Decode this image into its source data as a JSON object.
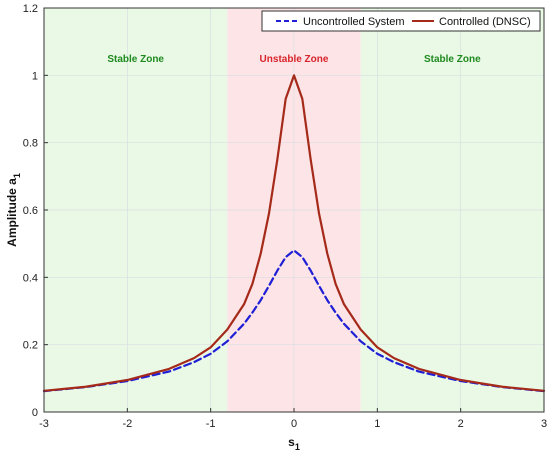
{
  "chart_data": {
    "type": "line",
    "title": "",
    "xlabel": "s",
    "xlabel_sub": "1",
    "ylabel": "Amplitude a",
    "ylabel_sub": "1",
    "xlim": [
      -3,
      3
    ],
    "ylim": [
      0,
      1.2
    ],
    "xticks": [
      -3,
      -2,
      -1,
      0,
      1,
      2,
      3
    ],
    "yticks": [
      0,
      0.2,
      0.4,
      0.6,
      0.8,
      1,
      1.2
    ],
    "grid": true,
    "legend_position": "top-right",
    "zones": [
      {
        "label": "Stable Zone",
        "x_range": [
          -3,
          -0.8
        ],
        "fill": "#eaf9e6",
        "text_color": "#1e8a1e"
      },
      {
        "label": "Unstable Zone",
        "x_range": [
          -0.8,
          0.8
        ],
        "fill": "#fde4e6",
        "text_color": "#d8232a"
      },
      {
        "label": "Stable Zone",
        "x_range": [
          0.8,
          3
        ],
        "fill": "#eaf9e6",
        "text_color": "#1e8a1e"
      }
    ],
    "series": [
      {
        "name": "Uncontrolled System",
        "color": "#1f1fd6",
        "style": "dashed",
        "x": [
          -3,
          -2.5,
          -2,
          -1.5,
          -1.2,
          -1,
          -0.8,
          -0.6,
          -0.5,
          -0.4,
          -0.3,
          -0.2,
          -0.1,
          0,
          0.1,
          0.2,
          0.3,
          0.4,
          0.5,
          0.6,
          0.8,
          1,
          1.2,
          1.5,
          2,
          2.5,
          3
        ],
        "y": [
          0.062,
          0.074,
          0.092,
          0.12,
          0.148,
          0.173,
          0.21,
          0.262,
          0.295,
          0.332,
          0.375,
          0.42,
          0.46,
          0.48,
          0.46,
          0.42,
          0.375,
          0.332,
          0.295,
          0.262,
          0.21,
          0.173,
          0.148,
          0.12,
          0.092,
          0.074,
          0.062
        ]
      },
      {
        "name": "Controlled (DNSC)",
        "color": "#a52a1a",
        "style": "solid",
        "x": [
          -3,
          -2.5,
          -2,
          -1.5,
          -1.2,
          -1,
          -0.8,
          -0.6,
          -0.5,
          -0.4,
          -0.3,
          -0.2,
          -0.1,
          0,
          0.1,
          0.2,
          0.3,
          0.4,
          0.5,
          0.6,
          0.8,
          1,
          1.2,
          1.5,
          2,
          2.5,
          3
        ],
        "y": [
          0.063,
          0.075,
          0.095,
          0.128,
          0.16,
          0.192,
          0.245,
          0.32,
          0.38,
          0.47,
          0.59,
          0.75,
          0.93,
          1.0,
          0.93,
          0.75,
          0.59,
          0.47,
          0.38,
          0.32,
          0.245,
          0.192,
          0.16,
          0.128,
          0.095,
          0.075,
          0.063
        ]
      }
    ]
  }
}
